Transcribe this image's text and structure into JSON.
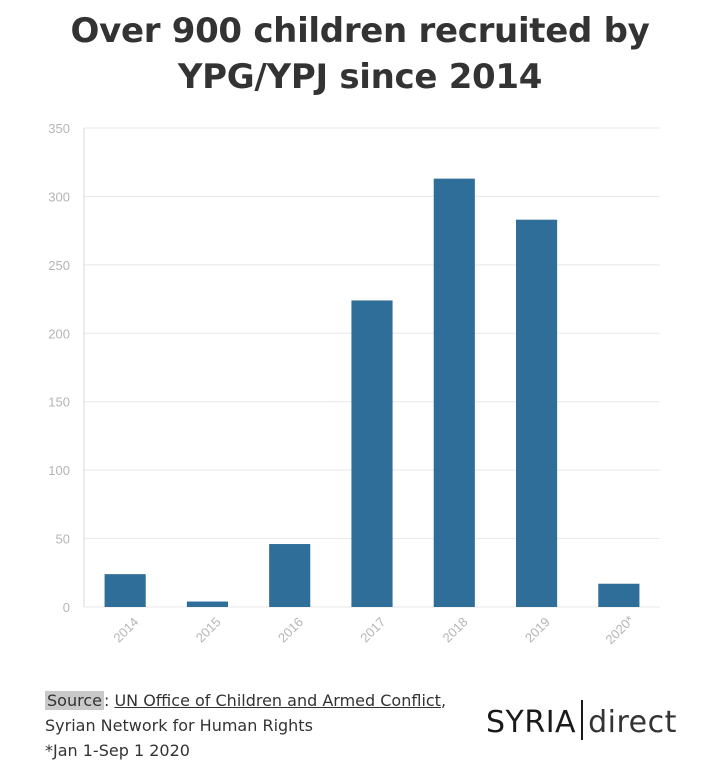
{
  "title": {
    "line1": "Over 900 children recruited by",
    "line2": "YPG/YPJ since 2014"
  },
  "chart_data": {
    "type": "bar",
    "categories": [
      "2014",
      "2015",
      "2016",
      "2017",
      "2018",
      "2019",
      "2020*"
    ],
    "values": [
      24,
      4,
      46,
      224,
      313,
      283,
      17
    ],
    "ylim": [
      0,
      350
    ],
    "yticks": [
      0,
      50,
      100,
      150,
      200,
      250,
      300,
      350
    ],
    "xlabel": "",
    "ylabel": "",
    "grid": true,
    "bar_color": "#2e6e99"
  },
  "footer": {
    "source_label": "Source",
    "source_sep": ": ",
    "source_link": "UN Office of Children and Armed Conflict",
    "source_comma": ",",
    "line2": "Syrian Network for Human Rights",
    "line3": "*Jan 1-Sep 1 2020"
  },
  "logo": {
    "part1": "SYRIA",
    "part2": "direct"
  }
}
